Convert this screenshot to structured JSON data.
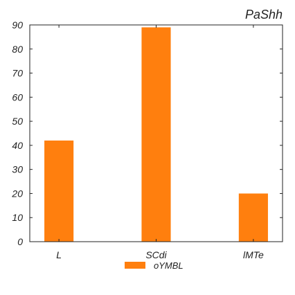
{
  "chart_data": {
    "type": "bar",
    "title": "PaShh",
    "xlabel": "",
    "ylabel": "",
    "categories": [
      "L",
      "SCdi",
      "lMTe"
    ],
    "series": [
      {
        "name": "oYMBL",
        "values": [
          42,
          89,
          20
        ],
        "color": "#ff7f0e"
      }
    ],
    "ylim": [
      0,
      90
    ],
    "yticks": [
      0,
      10,
      20,
      30,
      40,
      50,
      60,
      70,
      80,
      90
    ],
    "grid": false,
    "legend_position": "bottom-center"
  }
}
